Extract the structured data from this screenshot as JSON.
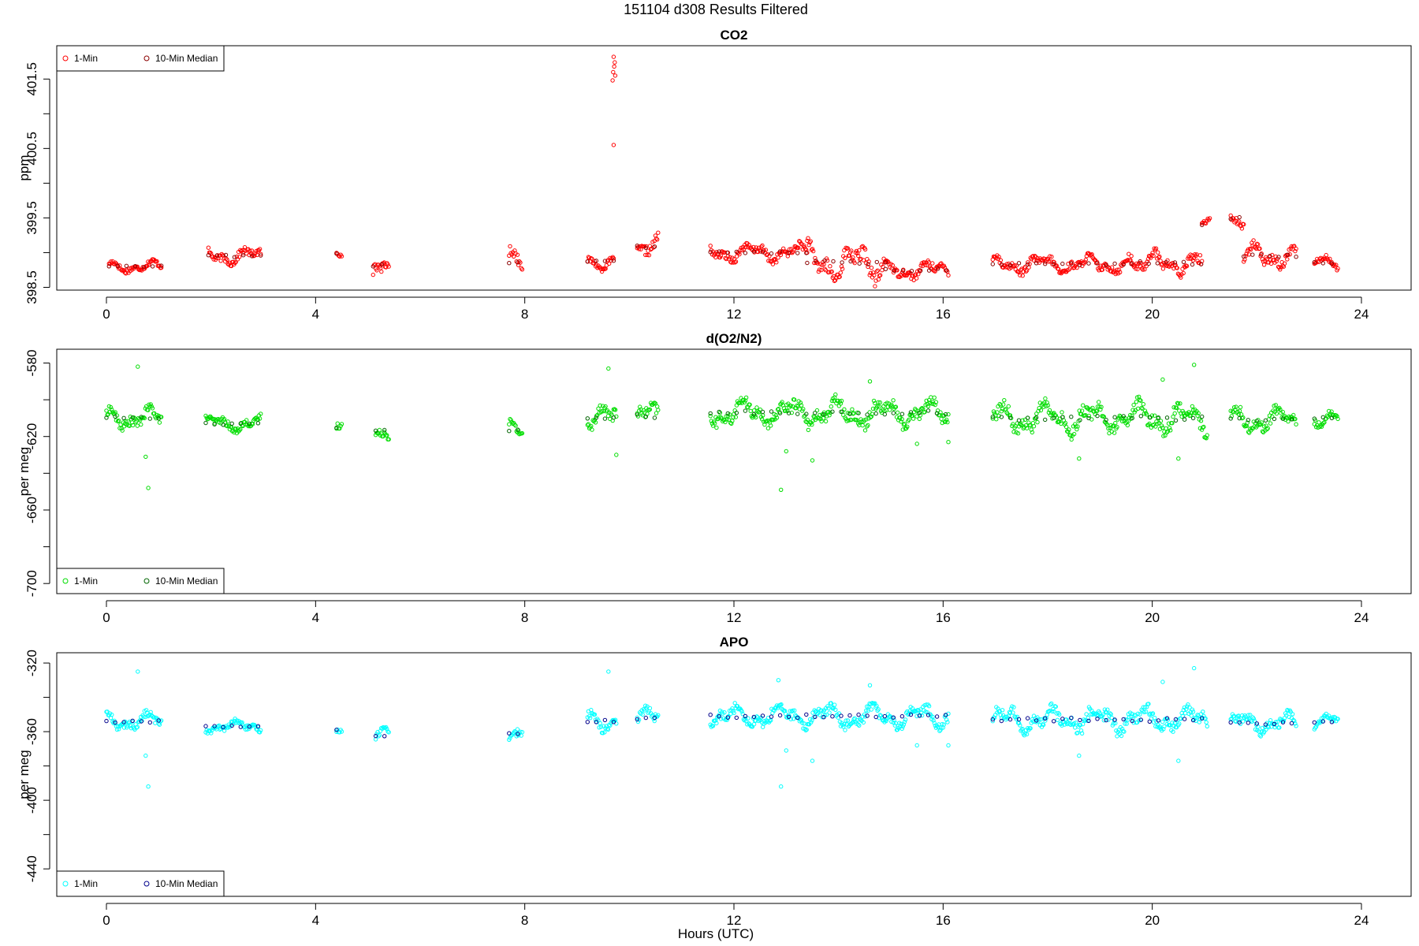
{
  "figure": {
    "title": "151104   d308   Results Filtered",
    "xlabel": "Hours (UTC)"
  },
  "chart_data": [
    {
      "type": "scatter",
      "title": "CO2",
      "ylabel": "ppm",
      "xlim": [
        -0.95,
        24.95
      ],
      "ylim": [
        398.46,
        401.98
      ],
      "xticks": [
        0,
        4,
        8,
        12,
        16,
        20,
        24
      ],
      "yticks": [
        398.5,
        399.0,
        399.5,
        400.0,
        400.5,
        401.0,
        401.5
      ],
      "ytick_labels": [
        "398.5",
        "",
        "399.5",
        "",
        "400.5",
        "",
        "401.5"
      ],
      "legend": {
        "position": "top-left",
        "entries": [
          "1-Min",
          "10-Min Median"
        ]
      },
      "colors": {
        "one_min": "#ff0000",
        "median": "#8b0000"
      },
      "segments": [
        [
          0.05,
          1.05,
          398.8,
          0.1
        ],
        [
          1.95,
          2.95,
          398.95,
          0.14
        ],
        [
          4.4,
          4.5,
          399.0,
          0.15
        ],
        [
          5.1,
          5.4,
          398.82,
          0.2
        ],
        [
          7.7,
          7.95,
          398.85,
          0.22
        ],
        [
          9.2,
          9.7,
          398.87,
          0.12
        ],
        [
          10.15,
          10.55,
          399.08,
          0.2
        ],
        [
          11.55,
          13.4,
          399.0,
          0.15
        ],
        [
          13.4,
          14.9,
          398.85,
          0.3
        ],
        [
          14.9,
          16.1,
          398.75,
          0.15
        ],
        [
          16.95,
          19.6,
          398.83,
          0.15
        ],
        [
          19.6,
          20.95,
          398.85,
          0.2
        ],
        [
          20.95,
          21.1,
          399.4,
          0.12
        ],
        [
          21.5,
          21.75,
          399.5,
          0.15
        ],
        [
          21.75,
          22.75,
          398.95,
          0.2
        ],
        [
          23.1,
          23.55,
          398.85,
          0.12
        ]
      ],
      "outliers": [
        [
          9.7,
          401.82
        ],
        [
          9.72,
          401.74
        ],
        [
          9.71,
          401.68
        ],
        [
          9.69,
          401.6
        ],
        [
          9.73,
          401.55
        ],
        [
          9.68,
          401.48
        ],
        [
          9.7,
          400.55
        ]
      ]
    },
    {
      "type": "scatter",
      "title": "d(O2/N2)",
      "ylabel": "per meg",
      "xlim": [
        -0.95,
        24.95
      ],
      "ylim": [
        -705.5,
        -572.5
      ],
      "xticks": [
        0,
        4,
        8,
        12,
        16,
        20,
        24
      ],
      "yticks": [
        -700,
        -680,
        -660,
        -640,
        -620,
        -600,
        -580
      ],
      "ytick_labels": [
        "-700",
        "",
        "-660",
        "",
        "-620",
        "",
        "-580"
      ],
      "legend": {
        "position": "bottom-left",
        "entries": [
          "1-Min",
          "10-Min Median"
        ]
      },
      "colors": {
        "one_min": "#00dd00",
        "median": "#006400"
      },
      "segments": [
        [
          0.0,
          1.05,
          -610,
          7
        ],
        [
          1.9,
          2.95,
          -613,
          5
        ],
        [
          4.4,
          4.5,
          -615,
          6
        ],
        [
          5.15,
          5.4,
          -617,
          6
        ],
        [
          7.7,
          7.95,
          -617,
          6
        ],
        [
          9.2,
          9.75,
          -610,
          9
        ],
        [
          10.15,
          10.55,
          -609,
          8
        ],
        [
          11.55,
          16.1,
          -607,
          9
        ],
        [
          16.95,
          21.05,
          -610,
          10
        ],
        [
          21.5,
          22.75,
          -611,
          8
        ],
        [
          23.1,
          23.55,
          -610,
          5
        ]
      ],
      "outliers": [
        [
          0.8,
          -648
        ],
        [
          0.75,
          -631
        ],
        [
          0.6,
          -582
        ],
        [
          9.6,
          -583
        ],
        [
          12.9,
          -649
        ],
        [
          13.0,
          -628
        ],
        [
          13.5,
          -633
        ],
        [
          14.6,
          -590
        ],
        [
          15.5,
          -624
        ],
        [
          18.6,
          -632
        ],
        [
          20.2,
          -589
        ],
        [
          20.5,
          -632
        ],
        [
          20.8,
          -581
        ],
        [
          16.1,
          -623
        ],
        [
          9.75,
          -630
        ]
      ]
    },
    {
      "type": "scatter",
      "title": "APO",
      "ylabel": "per meg",
      "xlim": [
        -0.95,
        24.95
      ],
      "ylim": [
        -456,
        -314
      ],
      "xticks": [
        0,
        4,
        8,
        12,
        16,
        20,
        24
      ],
      "yticks": [
        -440,
        -420,
        -400,
        -380,
        -360,
        -340,
        -320
      ],
      "ytick_labels": [
        "-440",
        "",
        "-400",
        "",
        "-360",
        "",
        "-320"
      ],
      "legend": {
        "position": "bottom-left",
        "entries": [
          "1-Min",
          "10-Min Median"
        ]
      },
      "colors": {
        "one_min": "#00ffff",
        "median": "#00008b"
      },
      "segments": [
        [
          0.0,
          1.05,
          -354,
          6
        ],
        [
          1.9,
          2.95,
          -357,
          4
        ],
        [
          4.4,
          4.5,
          -359,
          5
        ],
        [
          5.15,
          5.4,
          -362,
          5
        ],
        [
          7.7,
          7.95,
          -361,
          6
        ],
        [
          9.2,
          9.75,
          -354,
          7
        ],
        [
          10.15,
          10.55,
          -352,
          7
        ],
        [
          11.55,
          16.1,
          -351,
          8
        ],
        [
          16.95,
          21.05,
          -353,
          9
        ],
        [
          21.5,
          22.75,
          -355,
          7
        ],
        [
          23.1,
          23.55,
          -354,
          5
        ]
      ],
      "outliers": [
        [
          0.8,
          -392
        ],
        [
          0.75,
          -374
        ],
        [
          0.6,
          -325
        ],
        [
          9.6,
          -325
        ],
        [
          12.9,
          -392
        ],
        [
          13.0,
          -371
        ],
        [
          13.5,
          -377
        ],
        [
          14.6,
          -333
        ],
        [
          15.5,
          -368
        ],
        [
          18.6,
          -374
        ],
        [
          20.2,
          -331
        ],
        [
          20.5,
          -377
        ],
        [
          20.8,
          -323
        ],
        [
          16.1,
          -368
        ],
        [
          12.85,
          -330
        ]
      ]
    }
  ]
}
